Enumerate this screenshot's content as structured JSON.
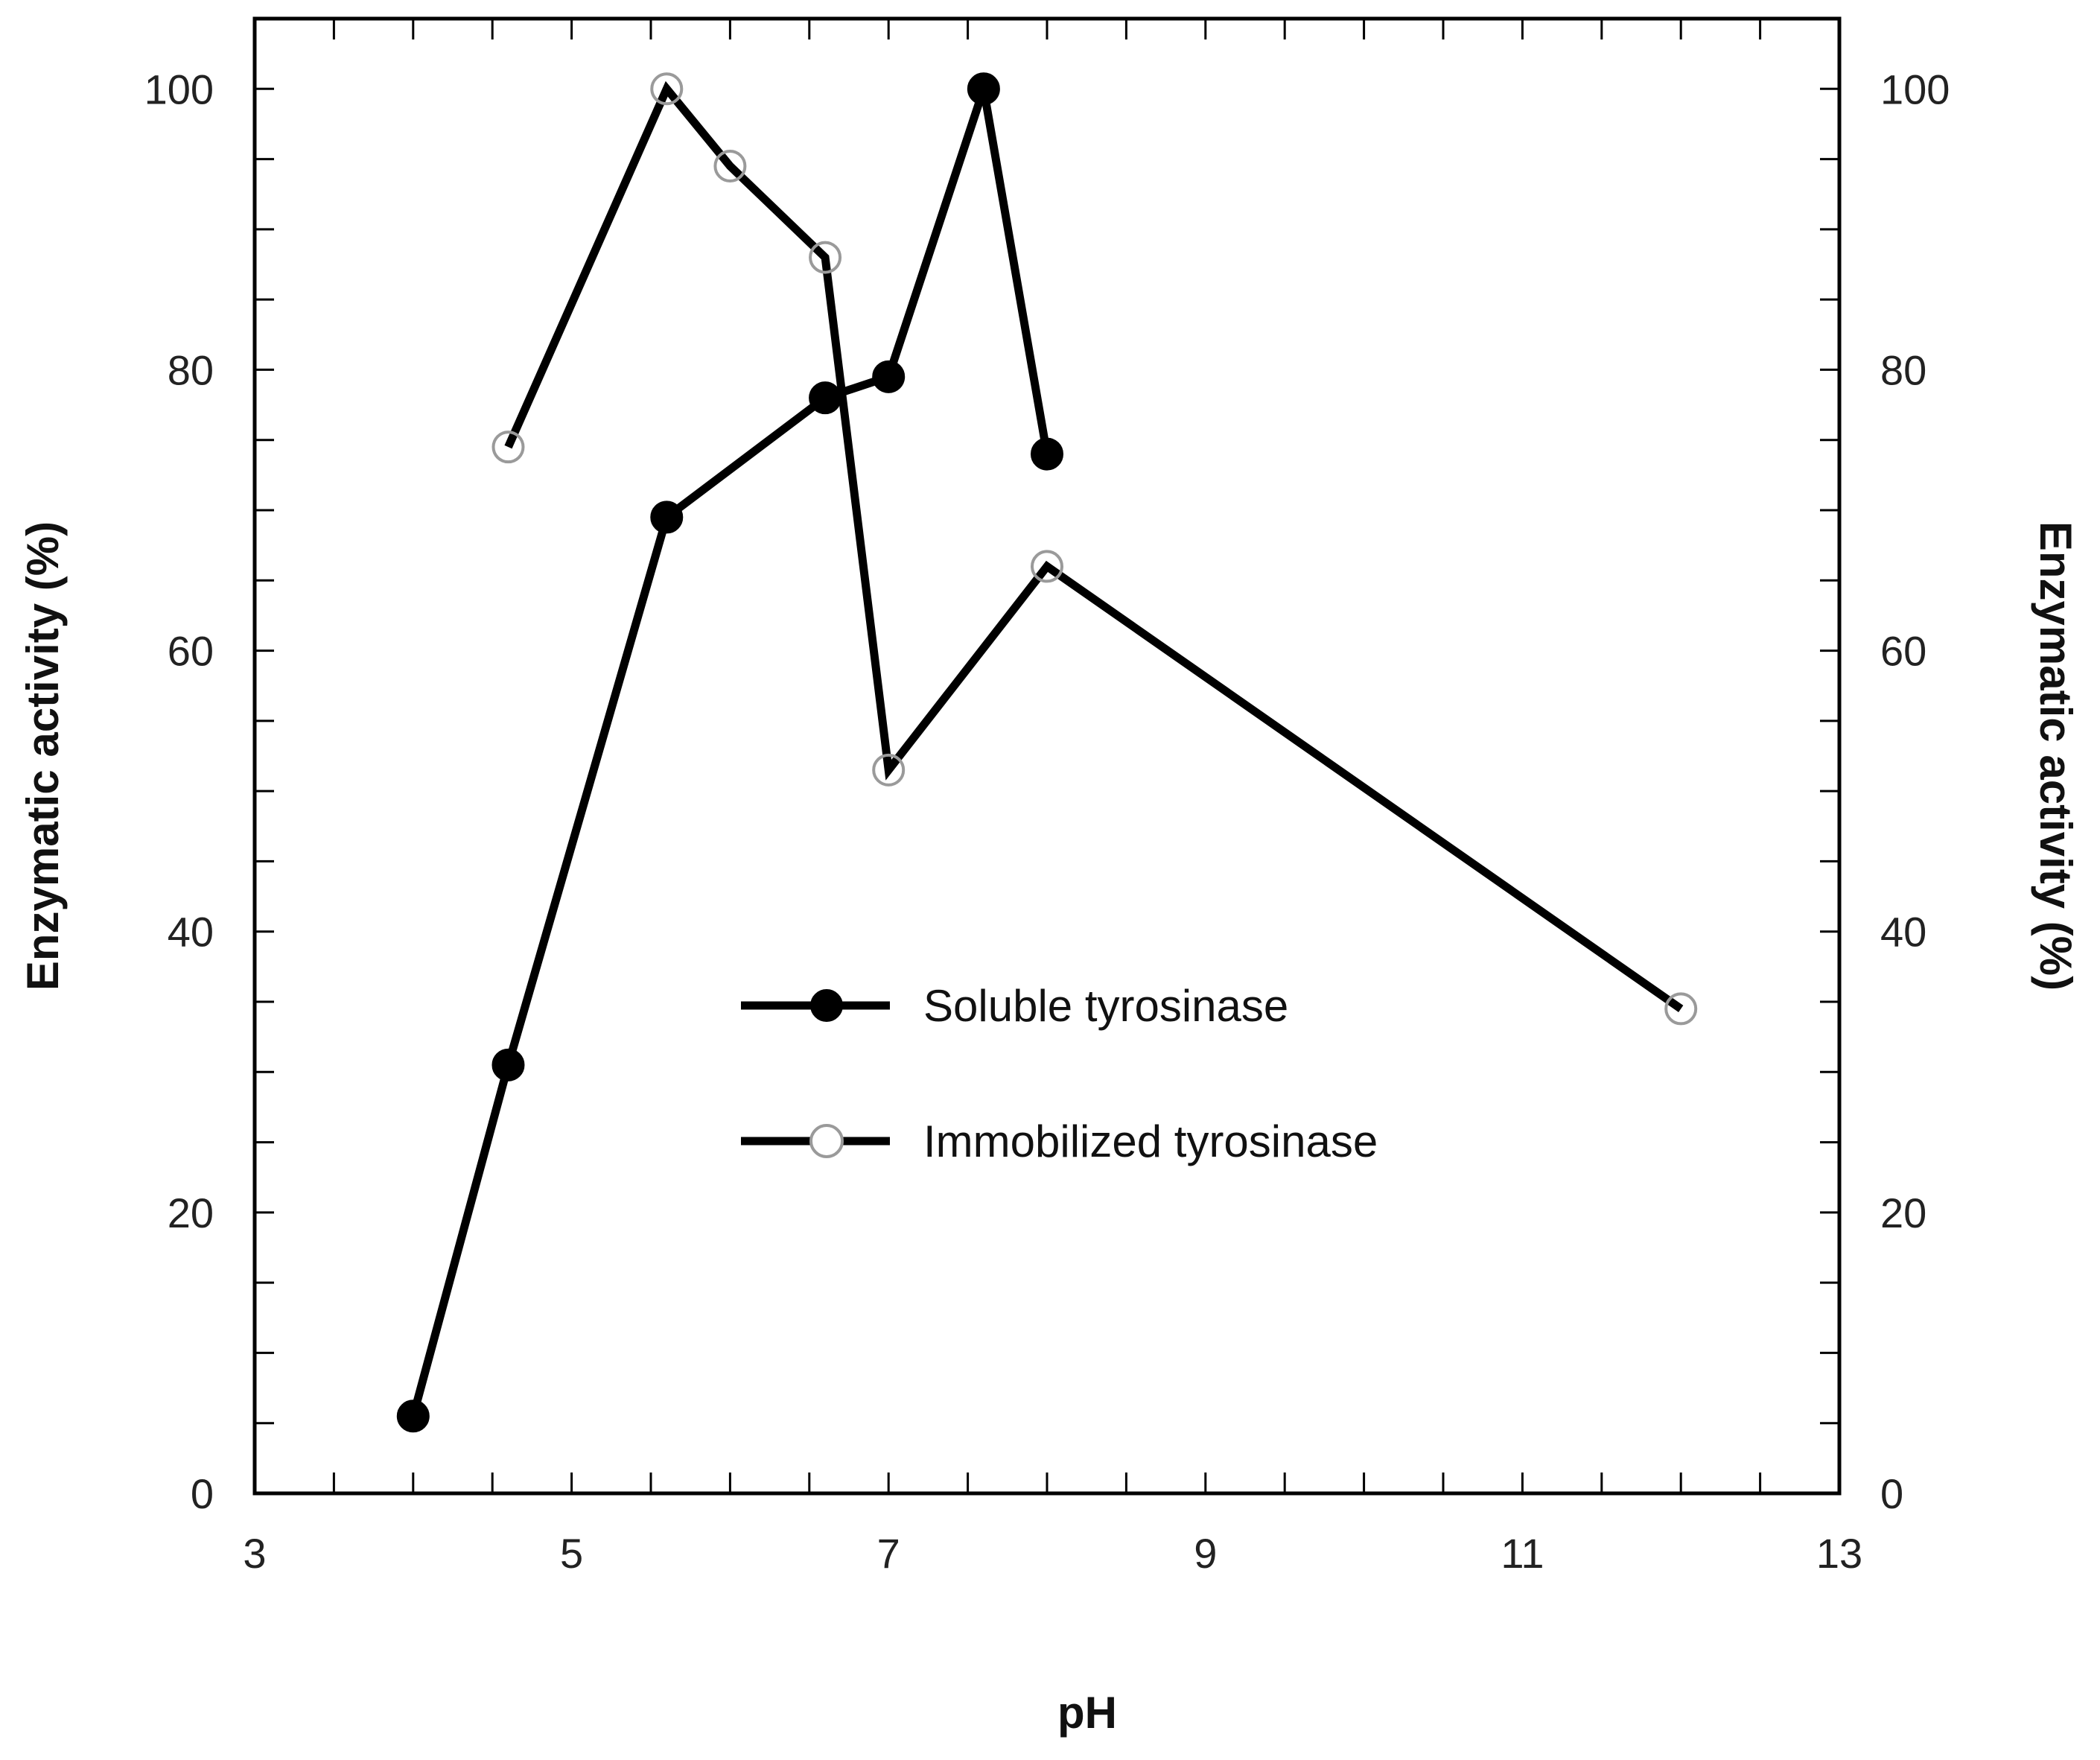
{
  "chart_data": {
    "type": "line",
    "title": "",
    "xlabel": "pH",
    "ylabel": "Enzymatic activity (%)",
    "ylabel_right": "Enzymatic activity (%)",
    "xlim": [
      3,
      13
    ],
    "ylim": [
      0,
      105
    ],
    "xticks": [
      3,
      5,
      7,
      9,
      11,
      13
    ],
    "yticks": [
      0,
      20,
      40,
      60,
      80,
      100
    ],
    "grid": false,
    "legend_position": "center",
    "series": [
      {
        "name": "Soluble tyrosinase",
        "marker": "filled-circle",
        "x": [
          4,
          4.6,
          5.6,
          6.6,
          7,
          7.6,
          8
        ],
        "y": [
          5.5,
          30.5,
          69.5,
          78,
          79.5,
          100,
          74
        ]
      },
      {
        "name": "Immobilized tyrosinase",
        "marker": "open-circle",
        "x": [
          4.6,
          5.6,
          6,
          6.6,
          7,
          8,
          12
        ],
        "y": [
          74.5,
          100,
          94.5,
          88,
          51.5,
          66,
          34.5
        ]
      }
    ]
  },
  "colors": {
    "line": "#000000",
    "open_marker": "#9a9a9a",
    "background": "#ffffff"
  }
}
